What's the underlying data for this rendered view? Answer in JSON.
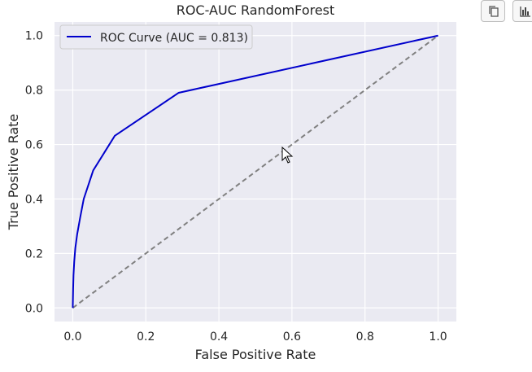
{
  "toolbar": {
    "copy_icon": "copy-icon",
    "chart_icon": "bar-chart-icon"
  },
  "chart_data": {
    "type": "line",
    "title": "ROC-AUC RandomForest",
    "xlabel": "False Positive Rate",
    "ylabel": "True Positive Rate",
    "xlim": [
      -0.05,
      1.05
    ],
    "ylim": [
      -0.05,
      1.05
    ],
    "xticks": [
      "0.0",
      "0.2",
      "0.4",
      "0.6",
      "0.8",
      "1.0"
    ],
    "yticks": [
      "0.0",
      "0.2",
      "0.4",
      "0.6",
      "0.8",
      "1.0"
    ],
    "grid": true,
    "legend_position": "top-left",
    "colors": {
      "plot_bg": "#eaeaf2",
      "curve": "#0000cc",
      "diagonal": "#808080"
    },
    "series": [
      {
        "name": "ROC Curve (AUC = 0.813)",
        "style": "solid",
        "x": [
          0.0,
          0.001,
          0.002,
          0.004,
          0.007,
          0.012,
          0.02,
          0.03,
          0.056,
          0.115,
          0.29,
          1.0
        ],
        "y": [
          0.0,
          0.07,
          0.12,
          0.17,
          0.22,
          0.27,
          0.33,
          0.4,
          0.505,
          0.632,
          0.79,
          1.0
        ]
      },
      {
        "name": "",
        "style": "dashed",
        "x": [
          0.0,
          1.0
        ],
        "y": [
          0.0,
          1.0
        ]
      }
    ]
  }
}
